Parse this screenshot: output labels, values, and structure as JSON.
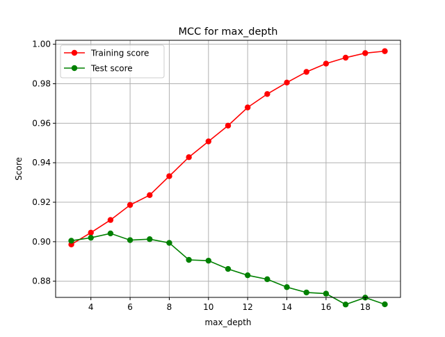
{
  "chart_data": {
    "type": "line",
    "title": "MCC for max_depth",
    "xlabel": "max_depth",
    "ylabel": "Score",
    "x": [
      3,
      4,
      5,
      6,
      7,
      8,
      9,
      10,
      11,
      12,
      13,
      14,
      15,
      16,
      17,
      18,
      19
    ],
    "xlim": [
      2.2,
      19.8
    ],
    "ylim": [
      0.8718,
      1.002
    ],
    "xticks": [
      4,
      6,
      8,
      10,
      12,
      14,
      16,
      18
    ],
    "yticks": [
      0.88,
      0.9,
      0.92,
      0.94,
      0.96,
      0.98,
      1.0
    ],
    "ytick_labels": [
      "0.88",
      "0.90",
      "0.92",
      "0.94",
      "0.96",
      "0.98",
      "1.00"
    ],
    "grid": true,
    "legend_position": "upper-left",
    "series": [
      {
        "name": "Training score",
        "color": "#ff0000",
        "values": [
          0.8986,
          0.9046,
          0.911,
          0.9186,
          0.9236,
          0.9332,
          0.9428,
          0.9508,
          0.9588,
          0.968,
          0.9748,
          0.9806,
          0.986,
          0.9902,
          0.9932,
          0.9955,
          0.9965
        ]
      },
      {
        "name": "Test score",
        "color": "#008000",
        "values": [
          0.9005,
          0.902,
          0.9042,
          0.9008,
          0.9013,
          0.8994,
          0.8908,
          0.8904,
          0.8862,
          0.883,
          0.881,
          0.877,
          0.8743,
          0.8737,
          0.8682,
          0.8717,
          0.8683
        ]
      }
    ]
  }
}
